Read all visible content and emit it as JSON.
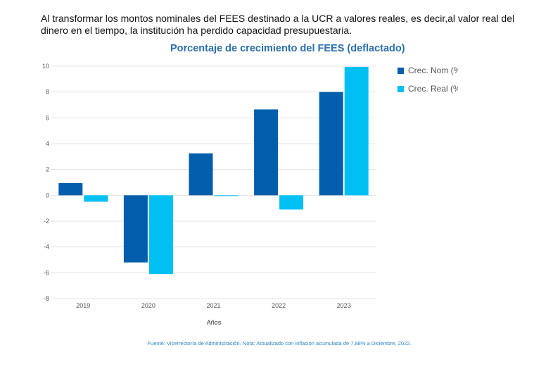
{
  "intro": {
    "line1": "Al transformar los montos nominales del FEES destinado a la UCR a valores reales, es decir,al valor real del",
    "line2": "dinero en el tiempo, la institución ha perdido capacidad presupuestaria."
  },
  "source": "Fuente: Vicerrectoría de Administración. Nota: Actualizado con inflación acumulada de 7.88% a Diciembre, 2022.",
  "chart_data": {
    "type": "bar",
    "title": "Porcentaje de crecimiento del FEES (deflactado)",
    "xlabel": "Años",
    "ylabel": "",
    "categories": [
      "2019",
      "2020",
      "2021",
      "2022",
      "2023"
    ],
    "series": [
      {
        "name": "Crec. Nom (%",
        "color": "#005eac",
        "values": [
          0.95,
          -5.2,
          3.25,
          6.65,
          8.0
        ]
      },
      {
        "name": "Crec. Real (%",
        "color": "#00c0f3",
        "values": [
          -0.5,
          -6.1,
          -0.05,
          -1.1,
          9.95
        ]
      }
    ],
    "ylim": [
      -8,
      10
    ],
    "yticks": [
      "-8",
      "-6",
      "-4",
      "-2",
      "0",
      "2",
      "4",
      "6",
      "8",
      "10"
    ],
    "grid": true,
    "legend": "right"
  }
}
